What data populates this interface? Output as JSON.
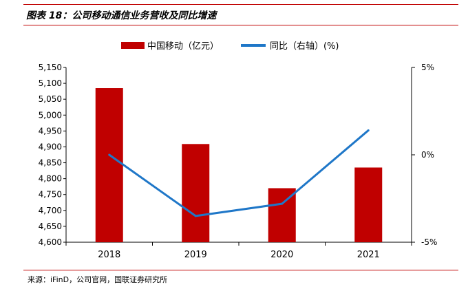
{
  "figure": {
    "title": "图表 18：公司移动通信业务营收及同比增速",
    "source": "来源：iFinD，公司官网，国联证券研究所"
  },
  "colors": {
    "bar": "#c00000",
    "line": "#1f77c8",
    "rule": "#c00000",
    "axis": "#000000"
  },
  "chart_data": {
    "type": "bar+line",
    "categories": [
      "2018",
      "2019",
      "2020",
      "2021"
    ],
    "series": [
      {
        "name": "中国移动（亿元）",
        "kind": "bar",
        "axis": "left",
        "values": [
          5085,
          4909,
          4770,
          4835
        ]
      },
      {
        "name": "同比（右轴）(%)",
        "kind": "line",
        "axis": "right",
        "values": [
          0.0,
          -3.5,
          -2.8,
          1.4
        ]
      }
    ],
    "y_left": {
      "min": 4600,
      "max": 5150,
      "step": 50,
      "tick_labels": [
        "4,600",
        "4,650",
        "4,700",
        "4,750",
        "4,800",
        "4,850",
        "4,900",
        "4,950",
        "5,000",
        "5,050",
        "5,100",
        "5,150"
      ]
    },
    "y_right": {
      "min": -5,
      "max": 5,
      "ticks": [
        -5,
        0,
        5
      ],
      "tick_labels": [
        "-5%",
        "0%",
        "5%"
      ]
    },
    "legend_position": "top-center"
  }
}
